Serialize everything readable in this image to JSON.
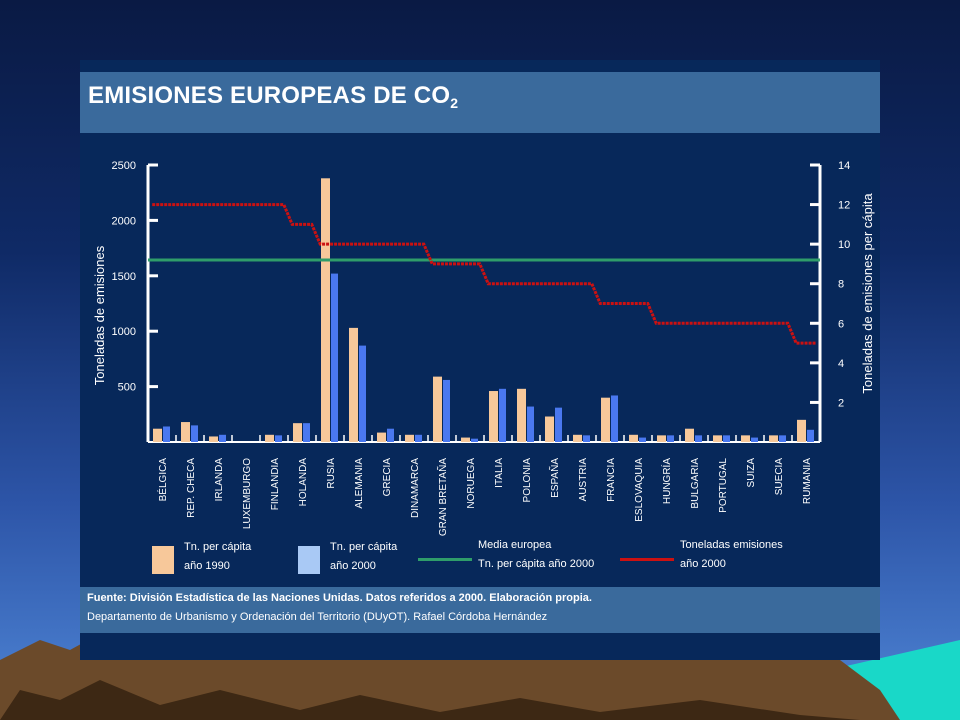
{
  "slide": {
    "title_main": "EMISIONES EUROPEAS DE CO",
    "title_sub": "2",
    "background_colors": {
      "sky_top": "#0a1a44",
      "sky_bottom": "#4f86d6",
      "panel": "#07285a",
      "band": "#3a6a9c",
      "sea": "#19d8c8",
      "mountains": "#6b4a2a"
    }
  },
  "legend": {
    "bar1990": {
      "line1": "Tn. per cápita",
      "line2": "año 1990",
      "color": "#f7c89a"
    },
    "bar2000": {
      "line1": "Tn. per cápita",
      "line2": "año 2000",
      "color": "#a9c9f5"
    },
    "mean": {
      "line1": "Media europea",
      "line2": "Tn. per cápita año 2000",
      "color": "#2f9d6a"
    },
    "emissions": {
      "line1": "Toneladas emisiones",
      "line2": "año 2000",
      "color": "#cc1111"
    }
  },
  "footer": {
    "source": "Fuente: División Estadística de las Naciones Unidas. Datos referidos a 2000. Elaboración propia.",
    "department": "Departamento de Urbanismo y Ordenación del Territorio (DUyOT). Rafael Córdoba Hernández"
  },
  "chart_data": {
    "type": "bar",
    "ylabel": "Toneladas de emisiones",
    "y2label": "Toneladas de emisiones per cápita",
    "ylim": [
      0,
      2500
    ],
    "yticks": [
      500,
      1000,
      1500,
      2000,
      2500
    ],
    "y2lim": [
      0,
      14
    ],
    "y2ticks": [
      2,
      4,
      6,
      8,
      10,
      12,
      14
    ],
    "categories": [
      "BÉLGICA",
      "REP. CHECA",
      "IRLANDA",
      "LUXEMBURGO",
      "FINLANDIA",
      "HOLANDA",
      "RUSIA",
      "ALEMANIA",
      "GRECIA",
      "DINAMARCA",
      "GRAN BRETAÑA",
      "NORUEGA",
      "ITALIA",
      "POLONIA",
      "ESPAÑA",
      "AUSTRIA",
      "FRANCIA",
      "ESLOVAQUIA",
      "HUNGRÍA",
      "BULGARIA",
      "PORTUGAL",
      "SUIZA",
      "SUECIA",
      "RUMANIA"
    ],
    "series": [
      {
        "name": "Tn. per cápita año 1990",
        "type": "bar",
        "axis": "left",
        "color": "#f7c89a",
        "values": [
          120,
          180,
          50,
          0,
          65,
          170,
          2380,
          1030,
          85,
          65,
          590,
          40,
          460,
          480,
          230,
          65,
          400,
          65,
          60,
          120,
          60,
          60,
          60,
          200
        ]
      },
      {
        "name": "Tn. per cápita año 2000",
        "type": "bar",
        "axis": "left",
        "color": "#4a78f0",
        "values": [
          140,
          150,
          65,
          0,
          60,
          170,
          1520,
          870,
          120,
          65,
          560,
          30,
          480,
          320,
          310,
          60,
          420,
          40,
          60,
          60,
          60,
          40,
          60,
          110
        ]
      },
      {
        "name": "Media europea Tn. per cápita año 2000",
        "type": "line",
        "axis": "right",
        "color": "#2f9d6a",
        "values": [
          9.2,
          9.2,
          9.2,
          9.2,
          9.2,
          9.2,
          9.2,
          9.2,
          9.2,
          9.2,
          9.2,
          9.2,
          9.2,
          9.2,
          9.2,
          9.2,
          9.2,
          9.2,
          9.2,
          9.2,
          9.2,
          9.2,
          9.2,
          9.2
        ]
      },
      {
        "name": "Toneladas emisiones año 2000",
        "type": "line",
        "axis": "right",
        "color": "#cc1111",
        "values": [
          12,
          12,
          12,
          12,
          12,
          11,
          10,
          10,
          10,
          10,
          9,
          9,
          8,
          8,
          8,
          8,
          7,
          7,
          6,
          6,
          6,
          6,
          6,
          5
        ]
      }
    ],
    "legend_position": "bottom",
    "grid": false
  }
}
